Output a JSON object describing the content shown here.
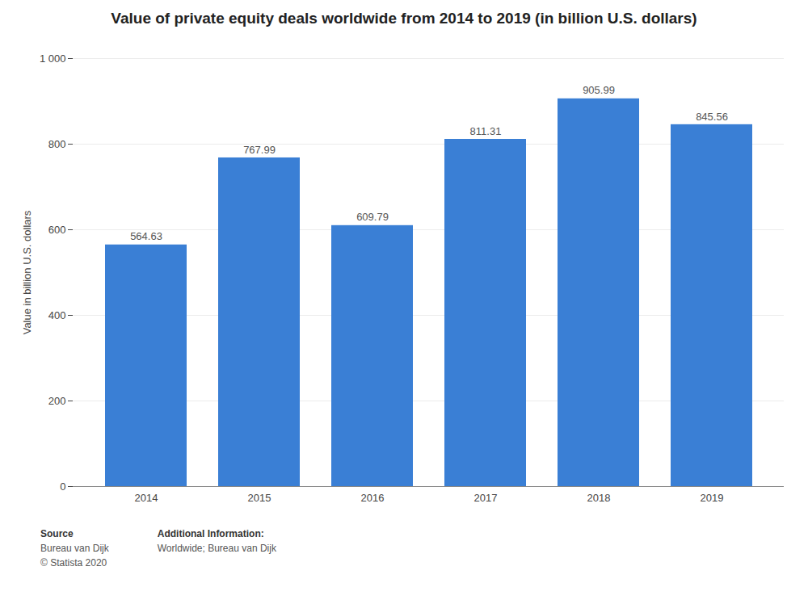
{
  "chart_data": {
    "type": "bar",
    "title": "Value of private equity deals worldwide from 2014 to 2019 (in billion U.S. dollars)",
    "categories": [
      "2014",
      "2015",
      "2016",
      "2017",
      "2018",
      "2019"
    ],
    "values": [
      564.63,
      767.99,
      609.79,
      811.31,
      905.99,
      845.56
    ],
    "color": "#3a7fd5",
    "ylabel": "Value in billion U.S. dollars",
    "ylim": [
      0,
      1000
    ],
    "yticks": [
      0,
      200,
      400,
      600,
      800,
      {
        "value": 1000,
        "label": "1 000"
      }
    ],
    "grid": true,
    "data_labels": true,
    "annotations": [
      [
        "Source",
        "Bureau van Dijk",
        "© Statista 2020"
      ],
      [
        "Additional Information:",
        "Worldwide; Bureau van Dijk"
      ]
    ]
  }
}
